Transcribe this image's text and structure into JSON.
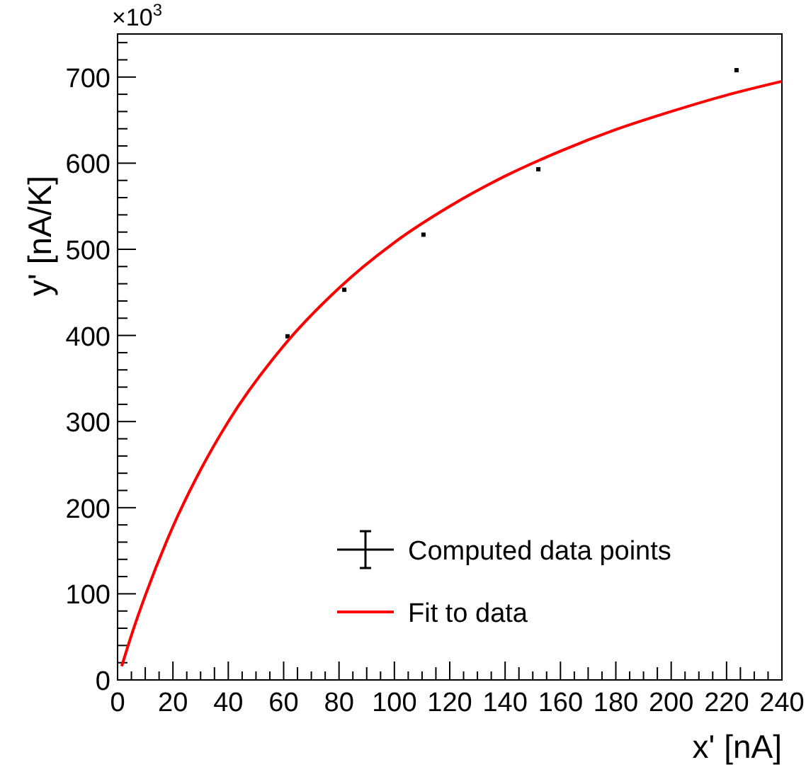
{
  "chart_data": {
    "type": "scatter",
    "xlabel": "x' [nA]",
    "ylabel": "y' [nA/K]",
    "annotations": [
      "×10$^{3}$"
    ],
    "xlim": [
      0,
      240
    ],
    "xticks": [
      0,
      20,
      40,
      60,
      80,
      100,
      120,
      140,
      160,
      180,
      200,
      220,
      240
    ],
    "ylim": [
      0,
      750
    ],
    "yticks": [
      0,
      100,
      200,
      300,
      400,
      500,
      600,
      700
    ],
    "grid": false,
    "legend": "bottom right",
    "series": [
      {
        "name": "Computed data points",
        "color": "#000000",
        "marker": "square",
        "x": [
          61.4,
          81.9,
          110.5,
          152,
          223.6
        ],
        "values": [
          399,
          453,
          517,
          593,
          708
        ]
      },
      {
        "name": "Fit to data",
        "type": "line",
        "color": "#ff0000",
        "line_style": "solid",
        "x": [
          1.5,
          5,
          10,
          20,
          30,
          40,
          60,
          80,
          100,
          120,
          140,
          160,
          180,
          200,
          220,
          240
        ],
        "values": [
          16,
          52,
          98,
          178,
          244,
          300,
          388,
          455,
          508,
          550,
          585,
          614,
          639,
          660,
          679,
          695
        ]
      }
    ]
  }
}
